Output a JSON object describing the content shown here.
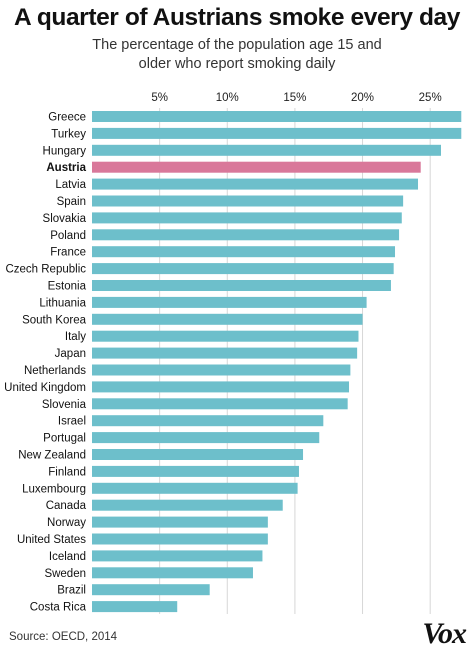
{
  "chart_data": {
    "type": "bar",
    "orientation": "horizontal",
    "title": "A quarter of Austrians smoke every day",
    "subtitle_lines": [
      "The percentage of the population age 15 and",
      "older who report smoking daily"
    ],
    "categories": [
      "Greece",
      "Turkey",
      "Hungary",
      "Austria",
      "Latvia",
      "Spain",
      "Slovakia",
      "Poland",
      "France",
      "Czech Republic",
      "Estonia",
      "Lithuania",
      "South Korea",
      "Italy",
      "Japan",
      "Netherlands",
      "United Kingdom",
      "Slovenia",
      "Israel",
      "Portugal",
      "New Zealand",
      "Finland",
      "Luxembourg",
      "Canada",
      "Norway",
      "United States",
      "Iceland",
      "Sweden",
      "Brazil",
      "Costa Rica"
    ],
    "values": [
      27.3,
      27.3,
      25.8,
      24.3,
      24.1,
      23.0,
      22.9,
      22.7,
      22.4,
      22.3,
      22.1,
      20.3,
      20.0,
      19.7,
      19.6,
      19.1,
      19.0,
      18.9,
      17.1,
      16.8,
      15.6,
      15.3,
      15.2,
      14.1,
      13.0,
      13.0,
      12.6,
      11.9,
      8.7,
      6.3
    ],
    "highlight": "Austria",
    "xlim": [
      0,
      27.5
    ],
    "xticks": [
      5,
      10,
      15,
      20,
      25
    ],
    "xtick_labels": [
      "5%",
      "10%",
      "15%",
      "20%",
      "25%"
    ],
    "xaxis_position": "top",
    "grid": "vertical",
    "colors": {
      "bar": "#6dbfcb",
      "highlight": "#d9789a",
      "grid": "#d6d6d6"
    }
  },
  "footer": {
    "source": "Source: OECD, 2014",
    "logo": "Vox"
  }
}
